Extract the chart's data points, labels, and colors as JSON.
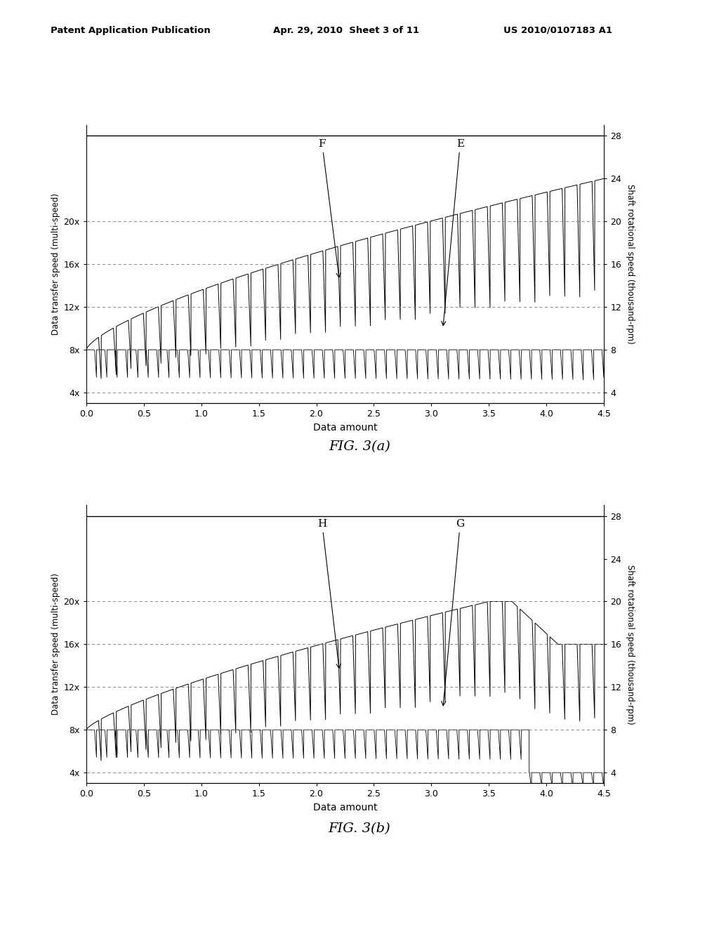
{
  "header_left": "Patent Application Publication",
  "header_mid": "Apr. 29, 2010  Sheet 3 of 11",
  "header_right": "US 2010/0107183 A1",
  "fig_a_label": "FIG. 3(a)",
  "fig_b_label": "FIG. 3(b)",
  "xlabel": "Data amount",
  "ylabel_left": "Data transfer speed (multi-speed)",
  "ylabel_right": "Shaft rotational speed (thousand-rpm)",
  "xlim": [
    0.0,
    4.5
  ],
  "ylim": [
    3,
    29
  ],
  "yticks_left": [
    4,
    8,
    12,
    16,
    20
  ],
  "ytick_labels_left": [
    "4x",
    "8x",
    "12x",
    "16x",
    "20x"
  ],
  "yticks_right": [
    4,
    8,
    12,
    16,
    20,
    24,
    28
  ],
  "ytick_labels_right": [
    "4",
    "8",
    "12",
    "16",
    "20",
    "24",
    "28"
  ],
  "xticks": [
    0.0,
    0.5,
    1.0,
    1.5,
    2.0,
    2.5,
    3.0,
    3.5,
    4.0,
    4.5
  ],
  "background_color": "#ffffff",
  "line_color": "#000000"
}
